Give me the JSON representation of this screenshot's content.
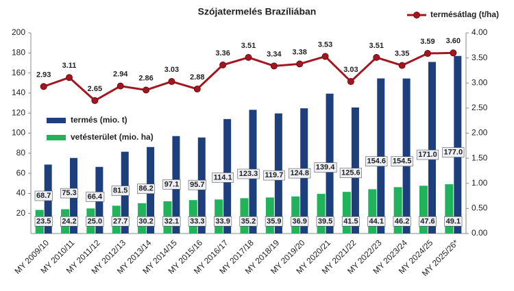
{
  "chart_data": {
    "type": "combo",
    "title": "Szójatermelés Brazíliában",
    "categories": [
      "MY 2009/10",
      "MY 2010/11",
      "MY 2011/12",
      "MY 2012/13",
      "MY 2013/14",
      "MY 2014/15",
      "MY 2015/16",
      "MY 2016/17",
      "MY 2017/18",
      "MY 2018/19",
      "MY 2019/20",
      "MY 2020/21",
      "MY 2021/22",
      "MY 2022/23",
      "MY 2023/24",
      "MY 2024/25",
      "MY 2025/26*"
    ],
    "series": [
      {
        "name": "vetésterület (mio. ha)",
        "type": "bar",
        "color": "#21b35b",
        "values": [
          23.5,
          24.2,
          25.0,
          27.7,
          30.2,
          32.1,
          33.3,
          33.9,
          35.2,
          35.9,
          36.9,
          39.5,
          41.5,
          44.1,
          46.2,
          47.6,
          49.1
        ],
        "value_labels": [
          "23.5",
          "24.2",
          "25.0",
          "27.7",
          "30.2",
          "32.1",
          "33.3",
          "33.9",
          "35.2",
          "35.9",
          "36.9",
          "39.5",
          "41.5",
          "44.1",
          "46.2",
          "47.6",
          "49.1"
        ]
      },
      {
        "name": "termés (mio. t)",
        "type": "bar",
        "color": "#1d3f7b",
        "values": [
          68.7,
          75.3,
          66.4,
          81.5,
          86.2,
          97.1,
          95.7,
          114.1,
          123.3,
          119.7,
          124.8,
          139.4,
          125.6,
          154.6,
          154.5,
          171.0,
          177.0
        ],
        "value_labels": [
          "68.7",
          "75.3",
          "66.4",
          "81.5",
          "86.2",
          "97.1",
          "95.7",
          "114.1",
          "123.3",
          "119.7",
          "124.8",
          "139.4",
          "125.6",
          "154.6",
          "154.5",
          "171.0",
          "177.0"
        ]
      },
      {
        "name": "termésátlag (t/ha)",
        "type": "line",
        "axis": "y2",
        "color": "#a3161f",
        "values": [
          2.93,
          3.11,
          2.65,
          2.94,
          2.86,
          3.03,
          2.88,
          3.36,
          3.51,
          3.34,
          3.38,
          3.53,
          3.03,
          3.51,
          3.35,
          3.59,
          3.6
        ],
        "value_labels": [
          "2.93",
          "3.11",
          "2.65",
          "2.94",
          "2.86",
          "3.03",
          "2.88",
          "3.36",
          "3.51",
          "3.34",
          "3.38",
          "3.53",
          "3.03",
          "3.51",
          "3.35",
          "3.59",
          "3.60"
        ]
      }
    ],
    "ylim": [
      0,
      200
    ],
    "yticks": [
      20,
      40,
      60,
      80,
      100,
      120,
      140,
      160,
      180,
      200
    ],
    "y2lim": [
      0,
      4
    ],
    "y2ticks": [
      {
        "value": 0,
        "label": "0.00"
      },
      {
        "value": 0.5,
        "label": "0.50"
      },
      {
        "value": 1,
        "label": "1.00"
      },
      {
        "value": 1.5,
        "label": "1.50"
      },
      {
        "value": 2,
        "label": "2.00"
      },
      {
        "value": 2.5,
        "label": "2.50"
      },
      {
        "value": 3,
        "label": "3.00"
      },
      {
        "value": 3.5,
        "label": "3.50"
      },
      {
        "value": 4,
        "label": "4.00"
      }
    ],
    "grid": false
  }
}
